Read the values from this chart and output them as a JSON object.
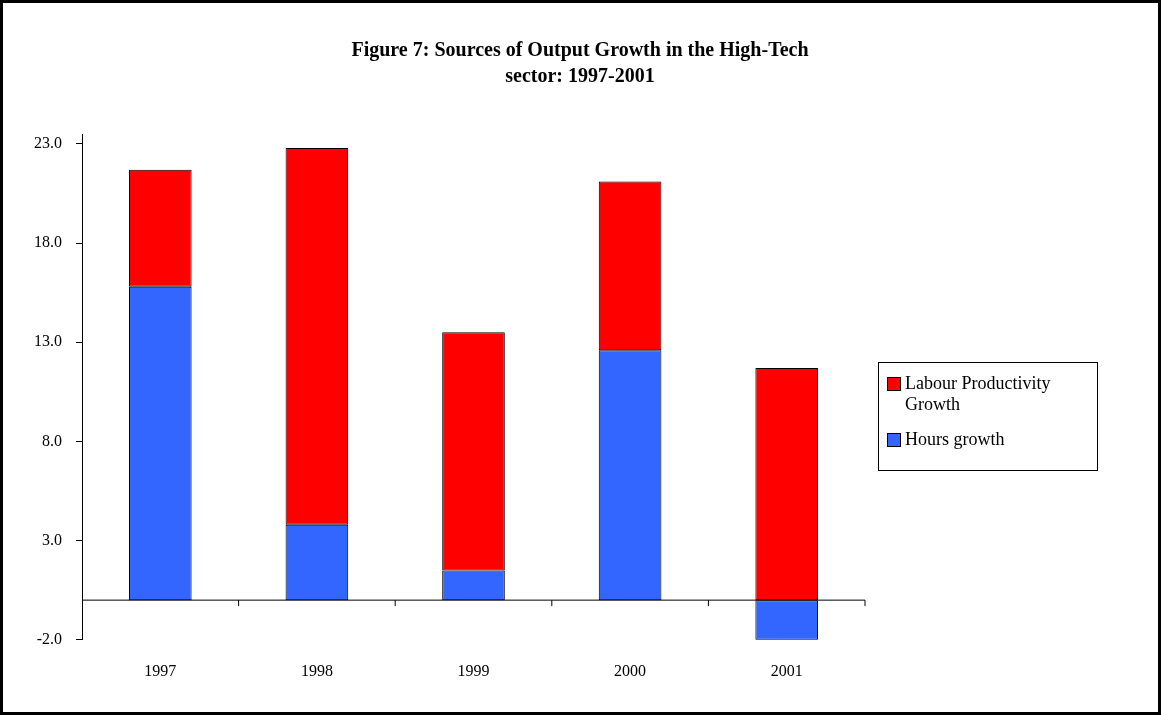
{
  "chart_data": {
    "type": "bar",
    "title": "Figure 7: Sources of Output Growth in the High-Tech sector: 1997-2001",
    "categories": [
      "1997",
      "1998",
      "1999",
      "2000",
      "2001"
    ],
    "series": [
      {
        "name": "Hours growth",
        "color": "#3366ff",
        "values": [
          15.8,
          3.8,
          1.5,
          12.6,
          -2.0
        ]
      },
      {
        "name": "Labour Productivity Growth",
        "color": "#ff0000",
        "values": [
          5.9,
          19.0,
          12.0,
          8.5,
          11.7
        ]
      }
    ],
    "stacked": true,
    "ylim": [
      -2,
      23.5
    ],
    "yticks": [
      {
        "value": -2,
        "label": "-2.0"
      },
      {
        "value": 3,
        "label": "3.0"
      },
      {
        "value": 8,
        "label": "8.0"
      },
      {
        "value": 13,
        "label": "13.0"
      },
      {
        "value": 18,
        "label": "18.0"
      },
      {
        "value": 23,
        "label": "23.0"
      }
    ],
    "grid": false,
    "legend": "right"
  }
}
